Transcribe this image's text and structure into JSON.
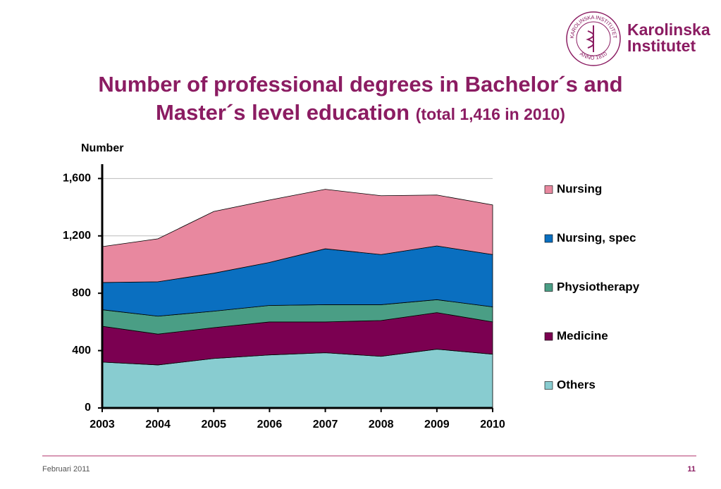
{
  "logo": {
    "name_line1": "Karolinska",
    "name_line2": "Institutet",
    "seal_top": "KAROLINSKA INSTITUTET",
    "seal_bottom": "ANNO 1810"
  },
  "chart_data": {
    "type": "area",
    "stacked": true,
    "title": "Number of professional degrees in Bachelor´s and Master´s level education",
    "subtitle": "(total 1,416 in 2010)",
    "y_label": "Number",
    "x": [
      2003,
      2004,
      2005,
      2006,
      2007,
      2008,
      2009,
      2010
    ],
    "xlim": [
      2003,
      2010
    ],
    "xticks": [
      2003,
      2004,
      2005,
      2006,
      2007,
      2008,
      2009,
      2010
    ],
    "ylim": [
      0,
      1700
    ],
    "yticks": [
      0,
      400,
      800,
      {
        "value": 1200,
        "label": "1,200"
      },
      {
        "value": 1600,
        "label": "1,600"
      }
    ],
    "grid": true,
    "legend": "right",
    "series": [
      {
        "name": "Others",
        "color": "#88ccd0",
        "values": [
          320,
          300,
          345,
          370,
          385,
          360,
          410,
          375
        ]
      },
      {
        "name": "Medicine",
        "color": "#7b0051",
        "values": [
          250,
          215,
          215,
          230,
          215,
          250,
          255,
          225
        ]
      },
      {
        "name": "Physiotherapy",
        "color": "#4a9e85",
        "values": [
          115,
          125,
          115,
          115,
          120,
          110,
          90,
          105
        ]
      },
      {
        "name": "Nursing, spec",
        "color": "#0a6fc0",
        "values": [
          190,
          240,
          265,
          300,
          390,
          350,
          375,
          365
        ]
      },
      {
        "name": "Nursing",
        "color": "#e8889f",
        "values": [
          250,
          300,
          430,
          435,
          415,
          410,
          355,
          346
        ]
      }
    ]
  },
  "footer": {
    "date": "Februari 2011",
    "page": "11"
  }
}
